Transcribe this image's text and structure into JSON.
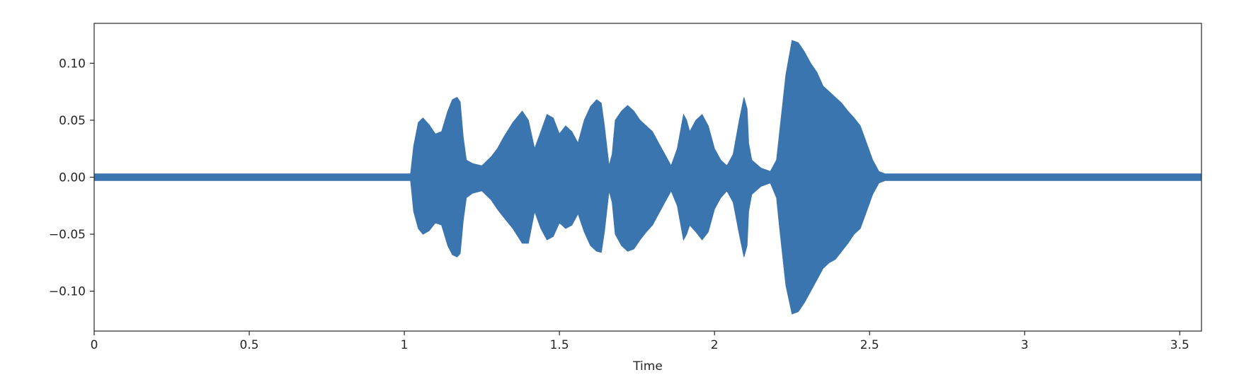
{
  "chart_data": {
    "type": "area",
    "title": "",
    "xlabel": "Time",
    "ylabel": "",
    "xlim": [
      0,
      3.57
    ],
    "ylim": [
      -0.135,
      0.135
    ],
    "grid": false,
    "legend": "none",
    "color": "#3b75af",
    "x_ticks": [
      0,
      0.5,
      1,
      1.5,
      2,
      2.5,
      3,
      3.5
    ],
    "x_tick_labels": [
      "0",
      "0.5",
      "1",
      "1.5",
      "2",
      "2.5",
      "3",
      "3.5"
    ],
    "y_ticks": [
      0.1,
      0.05,
      0.0,
      -0.05,
      -0.1
    ],
    "y_tick_labels": [
      "0.10",
      "0.05",
      "0.00",
      "−0.05",
      "−0.10"
    ],
    "series": [
      {
        "x": [
          0,
          1.02,
          1.03,
          1.045,
          1.06,
          1.08,
          1.1,
          1.12,
          1.14,
          1.155,
          1.17,
          1.18,
          1.19,
          1.2,
          1.22,
          1.25,
          1.28,
          1.3,
          1.32,
          1.35,
          1.38,
          1.4,
          1.42,
          1.44,
          1.46,
          1.48,
          1.5,
          1.52,
          1.54,
          1.56,
          1.58,
          1.6,
          1.62,
          1.635,
          1.645,
          1.66,
          1.67,
          1.68,
          1.7,
          1.72,
          1.74,
          1.76,
          1.78,
          1.8,
          1.82,
          1.84,
          1.86,
          1.88,
          1.9,
          1.91,
          1.92,
          1.94,
          1.96,
          1.98,
          2.0,
          2.02,
          2.04,
          2.06,
          2.08,
          2.095,
          2.105,
          2.11,
          2.12,
          2.15,
          2.18,
          2.2,
          2.21,
          2.23,
          2.25,
          2.27,
          2.29,
          2.31,
          2.33,
          2.35,
          2.37,
          2.39,
          2.41,
          2.43,
          2.45,
          2.47,
          2.49,
          2.51,
          2.53,
          2.55,
          3.57
        ],
        "upper": [
          0.003,
          0.003,
          0.027,
          0.048,
          0.052,
          0.046,
          0.038,
          0.04,
          0.058,
          0.068,
          0.07,
          0.066,
          0.035,
          0.015,
          0.012,
          0.01,
          0.018,
          0.025,
          0.035,
          0.048,
          0.058,
          0.05,
          0.025,
          0.04,
          0.055,
          0.052,
          0.038,
          0.045,
          0.04,
          0.03,
          0.05,
          0.062,
          0.068,
          0.065,
          0.045,
          0.01,
          0.02,
          0.05,
          0.058,
          0.063,
          0.058,
          0.05,
          0.045,
          0.04,
          0.03,
          0.02,
          0.01,
          0.025,
          0.055,
          0.05,
          0.04,
          0.05,
          0.055,
          0.045,
          0.025,
          0.015,
          0.01,
          0.02,
          0.05,
          0.07,
          0.06,
          0.03,
          0.015,
          0.008,
          0.005,
          0.015,
          0.04,
          0.09,
          0.12,
          0.118,
          0.11,
          0.1,
          0.092,
          0.08,
          0.075,
          0.07,
          0.065,
          0.058,
          0.052,
          0.045,
          0.03,
          0.015,
          0.005,
          0.003,
          0.003
        ],
        "lower": [
          -0.003,
          -0.003,
          -0.03,
          -0.045,
          -0.05,
          -0.047,
          -0.04,
          -0.042,
          -0.06,
          -0.068,
          -0.07,
          -0.067,
          -0.038,
          -0.018,
          -0.014,
          -0.012,
          -0.02,
          -0.028,
          -0.035,
          -0.045,
          -0.058,
          -0.058,
          -0.03,
          -0.045,
          -0.055,
          -0.052,
          -0.04,
          -0.045,
          -0.042,
          -0.032,
          -0.048,
          -0.06,
          -0.065,
          -0.066,
          -0.048,
          -0.012,
          -0.022,
          -0.05,
          -0.06,
          -0.065,
          -0.063,
          -0.055,
          -0.048,
          -0.042,
          -0.032,
          -0.022,
          -0.012,
          -0.025,
          -0.055,
          -0.05,
          -0.042,
          -0.048,
          -0.055,
          -0.048,
          -0.028,
          -0.018,
          -0.012,
          -0.022,
          -0.05,
          -0.07,
          -0.06,
          -0.03,
          -0.015,
          -0.008,
          -0.005,
          -0.018,
          -0.045,
          -0.095,
          -0.12,
          -0.118,
          -0.11,
          -0.1,
          -0.09,
          -0.08,
          -0.075,
          -0.072,
          -0.065,
          -0.058,
          -0.05,
          -0.045,
          -0.03,
          -0.015,
          -0.005,
          -0.003,
          -0.003
        ]
      }
    ]
  }
}
